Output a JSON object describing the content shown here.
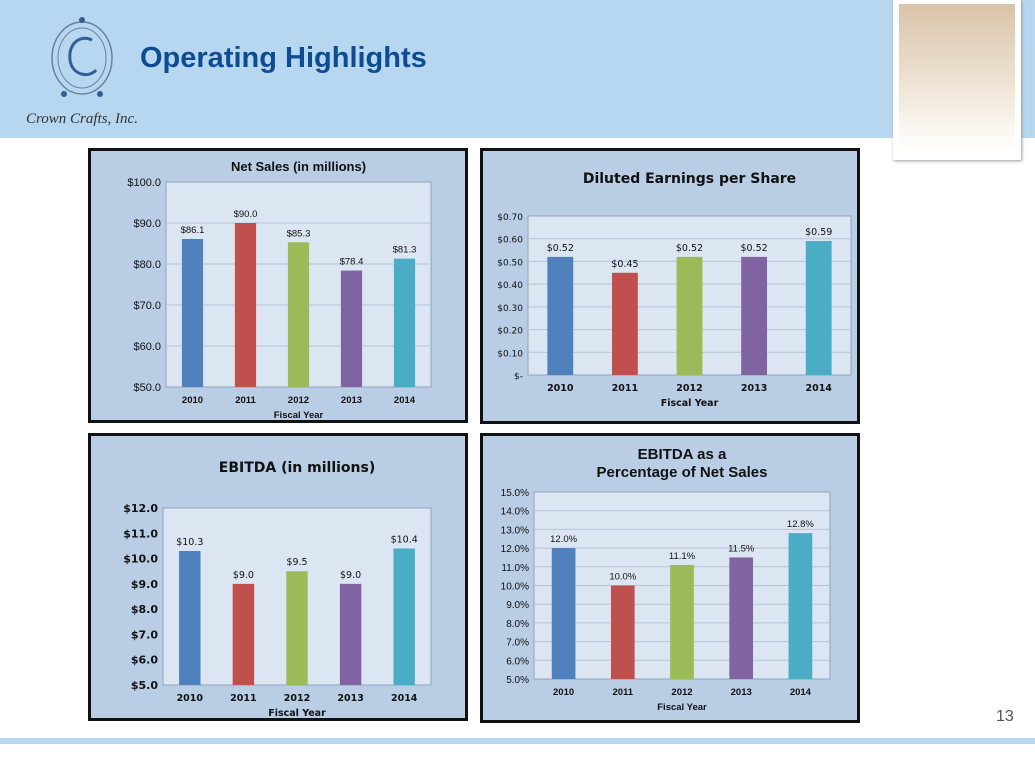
{
  "header": {
    "title": "Operating Highlights",
    "company": "Crown Crafts, Inc.",
    "logo_text": "CROWN CRAFTS"
  },
  "page_number": "13",
  "colors": {
    "bars": [
      "#4f81bd",
      "#c0504d",
      "#9bbb59",
      "#8064a2",
      "#4bacc6"
    ],
    "plot_bg": "#dce6f2",
    "panel_bg": "#b9cde5",
    "title": "#0e4c92"
  },
  "chart_data": [
    {
      "type": "bar",
      "title": "Net Sales (in millions)",
      "xlabel": "Fiscal Year",
      "ylabel": "",
      "categories": [
        "2010",
        "2011",
        "2012",
        "2013",
        "2014"
      ],
      "values": [
        86.1,
        90.0,
        85.3,
        78.4,
        81.3
      ],
      "value_labels": [
        "$86.1",
        "$90.0",
        "$85.3",
        "$78.4",
        "$81.3"
      ],
      "ylim": [
        50,
        100
      ],
      "yticks": [
        "$50.0",
        "$60.0",
        "$70.0",
        "$80.0",
        "$90.0",
        "$100.0"
      ],
      "grid": true
    },
    {
      "type": "bar",
      "title": "Diluted Earnings per Share",
      "xlabel": "Fiscal Year",
      "ylabel": "",
      "categories": [
        "2010",
        "2011",
        "2012",
        "2013",
        "2014"
      ],
      "values": [
        0.52,
        0.45,
        0.52,
        0.52,
        0.59
      ],
      "value_labels": [
        "$0.52",
        "$0.45",
        "$0.52",
        "$0.52",
        "$0.59"
      ],
      "ylim": [
        0,
        0.7
      ],
      "yticks": [
        "$-",
        "$0.10",
        "$0.20",
        "$0.30",
        "$0.40",
        "$0.50",
        "$0.60",
        "$0.70"
      ],
      "grid": true
    },
    {
      "type": "bar",
      "title": "EBITDA (in millions)",
      "xlabel": "Fiscal Year",
      "ylabel": "",
      "categories": [
        "2010",
        "2011",
        "2012",
        "2013",
        "2014"
      ],
      "values": [
        10.3,
        9.0,
        9.5,
        9.0,
        10.4
      ],
      "value_labels": [
        "$10.3",
        "$9.0",
        "$9.5",
        "$9.0",
        "$10.4"
      ],
      "ylim": [
        5,
        12
      ],
      "yticks": [
        "$5.0",
        "$6.0",
        "$7.0",
        "$8.0",
        "$9.0",
        "$10.0",
        "$11.0",
        "$12.0"
      ],
      "grid": false
    },
    {
      "type": "bar",
      "title": "EBITDA as a Percentage of Net Sales",
      "title_lines": [
        "EBITDA as a",
        "Percentage of Net Sales"
      ],
      "xlabel": "Fiscal Year",
      "ylabel": "",
      "categories": [
        "2010",
        "2011",
        "2012",
        "2013",
        "2014"
      ],
      "values": [
        12.0,
        10.0,
        11.1,
        11.5,
        12.8
      ],
      "value_labels": [
        "12.0%",
        "10.0%",
        "11.1%",
        "11.5%",
        "12.8%"
      ],
      "ylim": [
        5,
        15
      ],
      "yticks": [
        "5.0%",
        "6.0%",
        "7.0%",
        "8.0%",
        "9.0%",
        "10.0%",
        "11.0%",
        "12.0%",
        "13.0%",
        "14.0%",
        "15.0%"
      ],
      "grid": true
    }
  ]
}
